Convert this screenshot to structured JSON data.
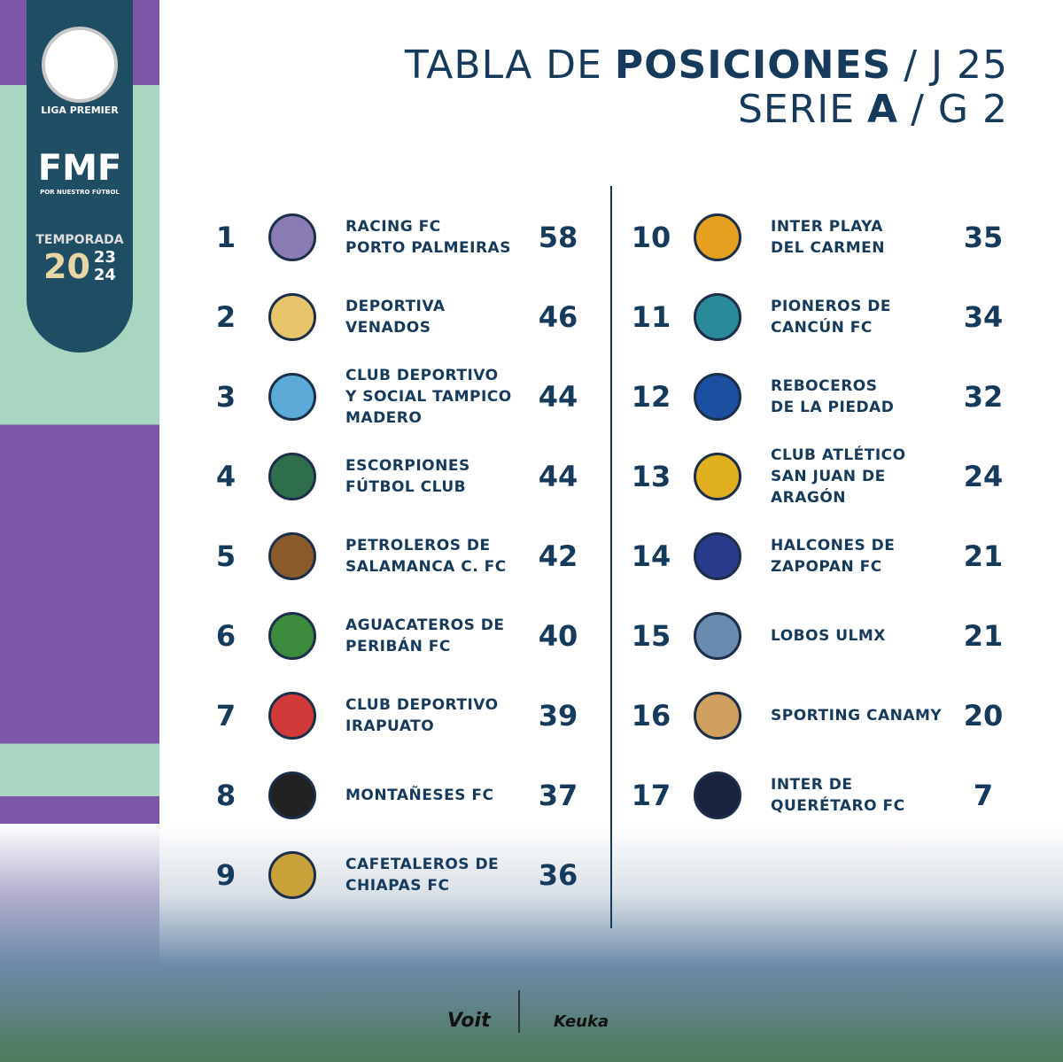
{
  "sidebar": {
    "league": "LIGA PREMIER",
    "federation": "FMF",
    "slogan": "POR NUESTRO FÚTBOL",
    "season_label": "TEMPORADA",
    "season_year": [
      "20",
      "23",
      "24"
    ]
  },
  "header": {
    "line1": [
      "TABLA DE",
      "POSICIONES",
      "/ J 25"
    ],
    "line2": [
      "SERIE",
      "A",
      "/ G 2"
    ]
  },
  "table": {
    "rows": [
      {
        "pos": "1",
        "name": [
          "RACING FC",
          "PORTO PALMEIRAS"
        ],
        "points": "58"
      },
      {
        "pos": "2",
        "name": [
          "DEPORTIVA",
          "VENADOS"
        ],
        "points": "46"
      },
      {
        "pos": "3",
        "name": [
          "CLUB DEPORTIVO",
          "Y SOCIAL TAMPICO",
          "MADERO"
        ],
        "points": "44"
      },
      {
        "pos": "4",
        "name": [
          "ESCORPIONES",
          "FÚTBOL CLUB"
        ],
        "points": "44"
      },
      {
        "pos": "5",
        "name": [
          "PETROLEROS DE",
          "SALAMANCA C. FC"
        ],
        "points": "42"
      },
      {
        "pos": "6",
        "name": [
          "AGUACATEROS DE",
          "PERIBÁN FC"
        ],
        "points": "40"
      },
      {
        "pos": "7",
        "name": [
          "CLUB DEPORTIVO",
          "IRAPUATO"
        ],
        "points": "39"
      },
      {
        "pos": "8",
        "name": [
          "MONTAÑESES FC"
        ],
        "points": "37"
      },
      {
        "pos": "9",
        "name": [
          "CAFETALEROS DE",
          "CHIAPAS FC"
        ],
        "points": "36"
      },
      {
        "pos": "10",
        "name": [
          "INTER PLAYA",
          "DEL CARMEN"
        ],
        "points": "35"
      },
      {
        "pos": "11",
        "name": [
          "PIONEROS DE",
          "CANCÚN FC"
        ],
        "points": "34"
      },
      {
        "pos": "12",
        "name": [
          "REBOCEROS",
          "DE LA PIEDAD"
        ],
        "points": "32"
      },
      {
        "pos": "13",
        "name": [
          "CLUB ATLÉTICO",
          "SAN JUAN DE",
          "ARAGÓN"
        ],
        "points": "24"
      },
      {
        "pos": "14",
        "name": [
          "HALCONES DE",
          "ZAPOPAN FC"
        ],
        "points": "21"
      },
      {
        "pos": "15",
        "name": [
          "LOBOS ULMX"
        ],
        "points": "21"
      },
      {
        "pos": "16",
        "name": [
          "SPORTING CANAMY"
        ],
        "points": "20"
      },
      {
        "pos": "17",
        "name": [
          "INTER DE",
          "QUERÉTARO FC"
        ],
        "points": "7"
      }
    ]
  },
  "footer": {
    "sponsors": [
      "Voit",
      "Keuka"
    ]
  }
}
